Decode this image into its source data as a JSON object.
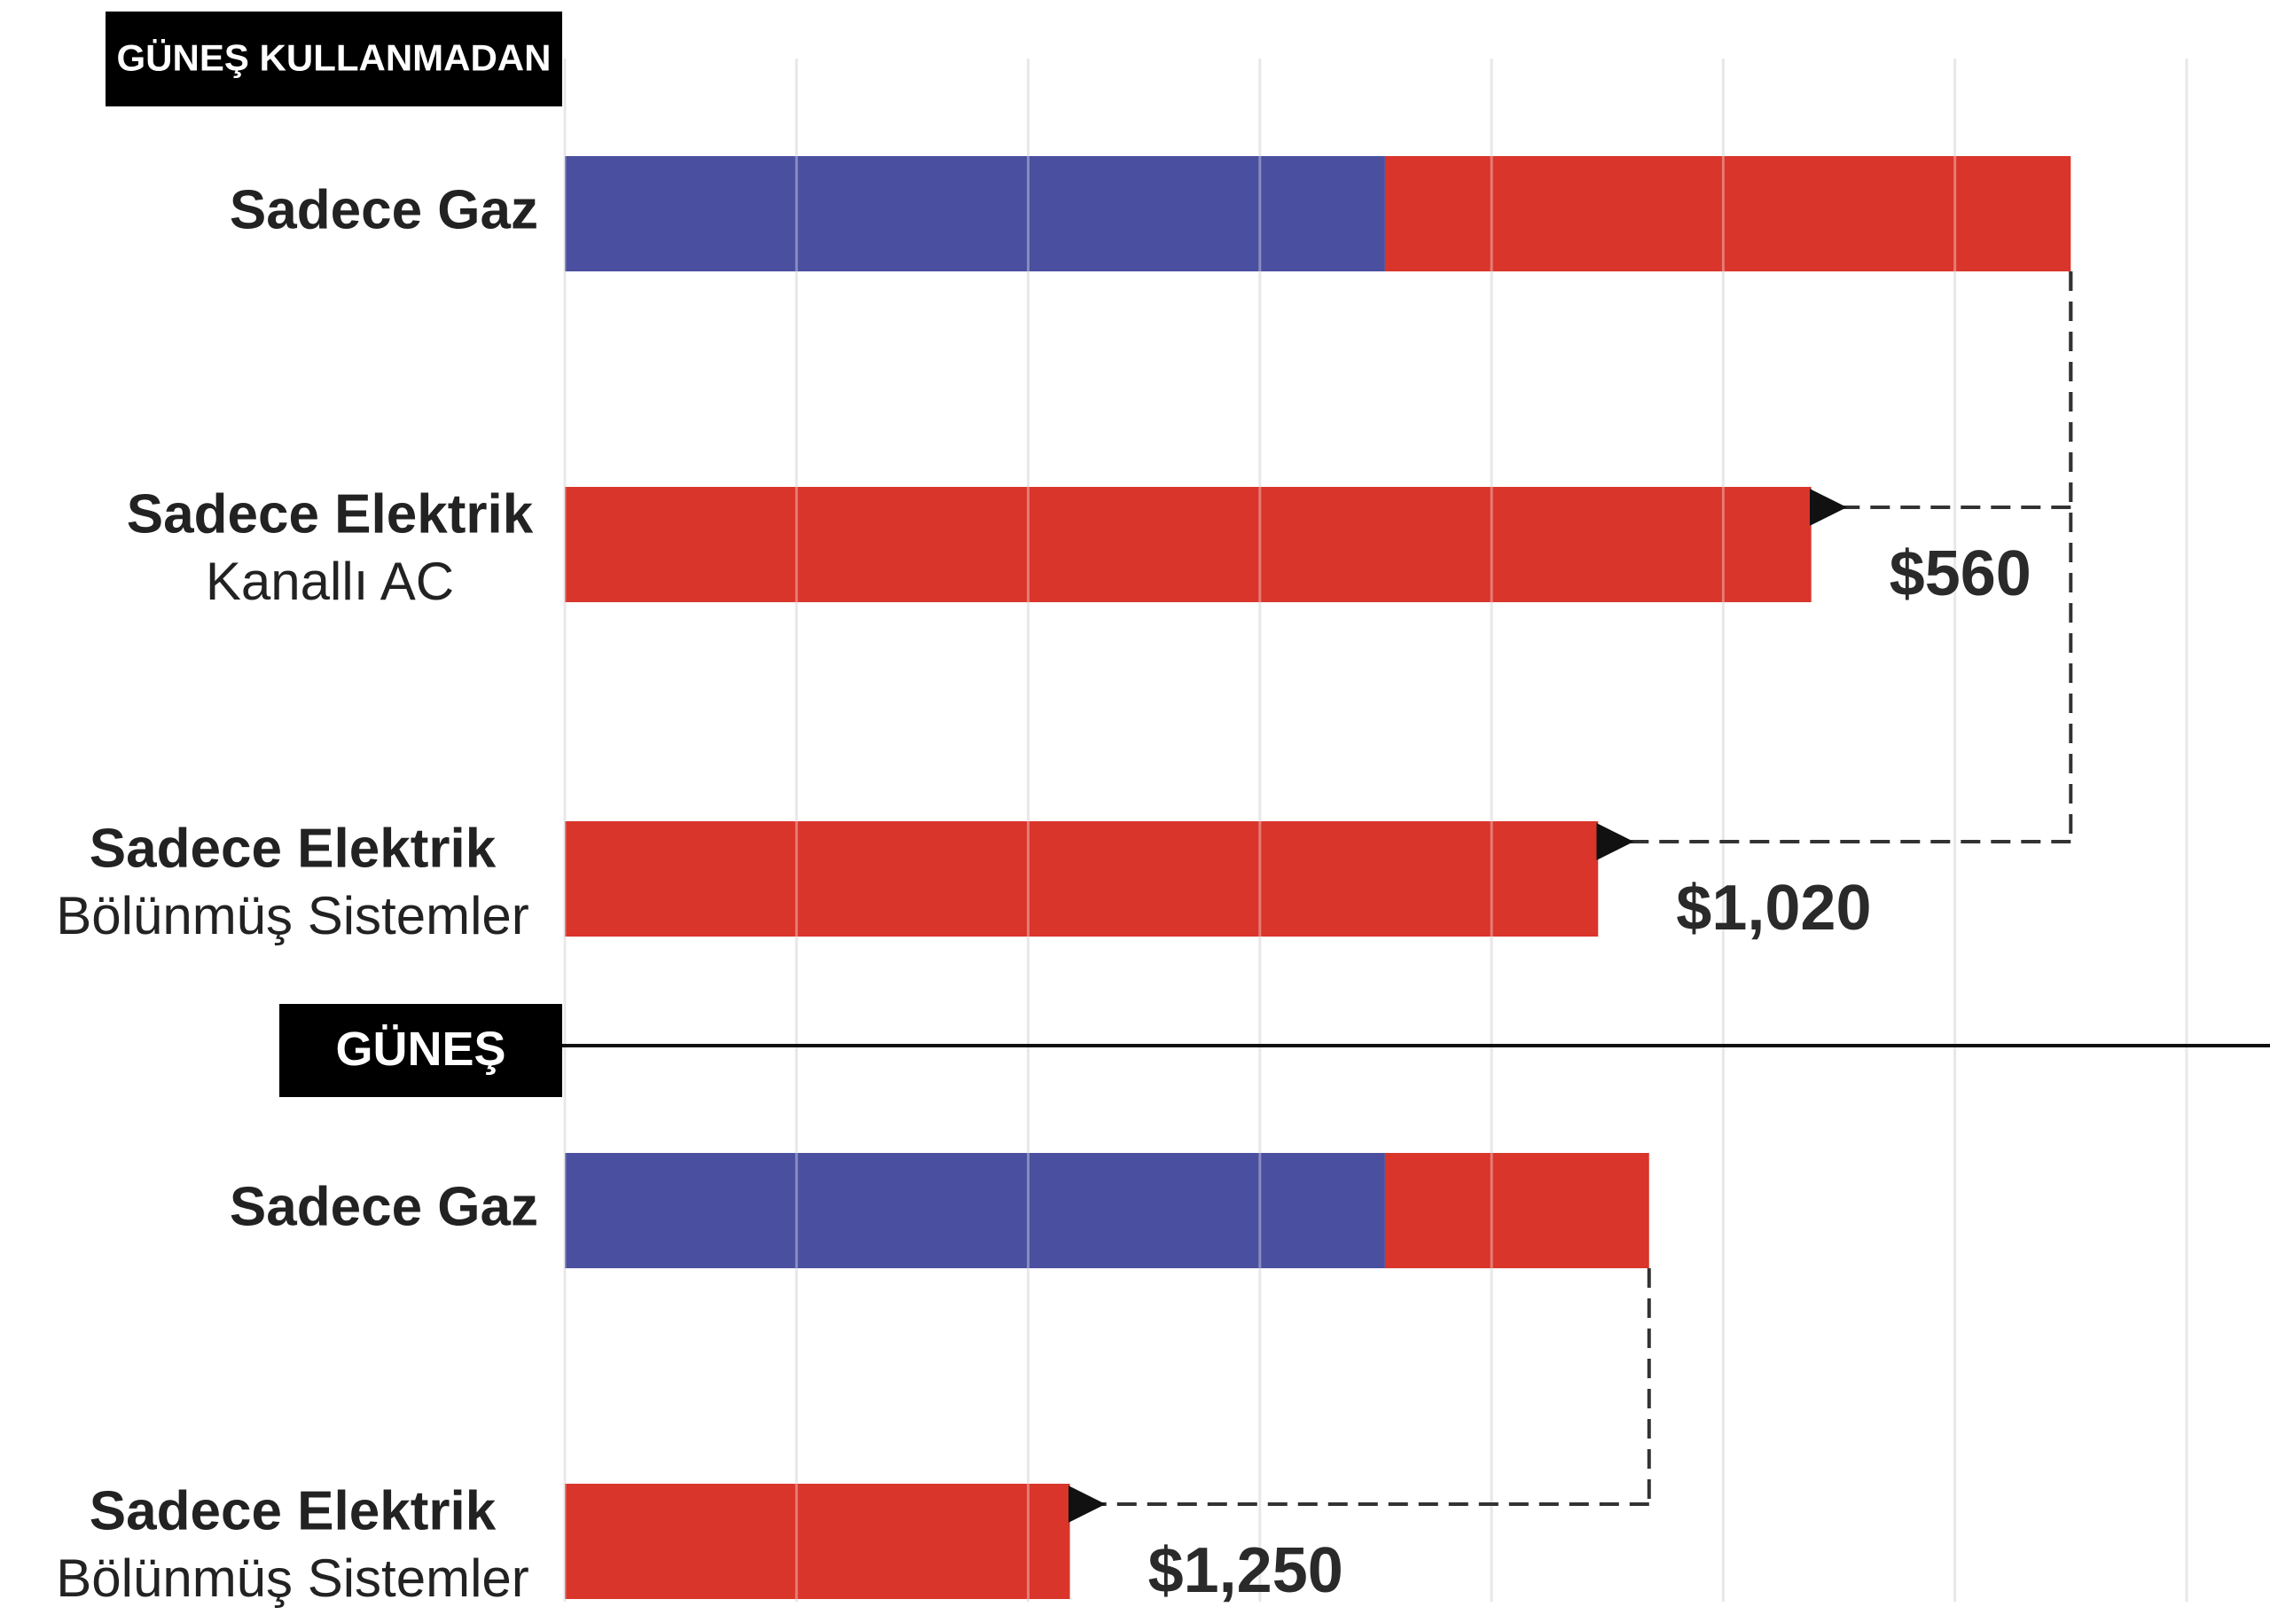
{
  "chart_data": {
    "type": "bar",
    "groups": [
      {
        "label": "GÜNEŞ KULLANMADAN",
        "start": 0
      },
      {
        "label": "GÜNEŞ",
        "start": 3
      }
    ],
    "categories": [
      "Sadece Gaz",
      "Sadece Elektrik",
      "Sadece Elektrik",
      "Sadece Gaz",
      "Sadece Elektrik"
    ],
    "category_notes": [
      null,
      "Kanallı AC",
      "Bölünmüş Sistemler",
      null,
      "Bölünmüş Sistemler"
    ],
    "series": [
      {
        "color": "#4a4f9f",
        "values": [
          1770,
          null,
          null,
          1770,
          null
        ]
      },
      {
        "color": "#d9352b",
        "values": [
          1480,
          2690,
          2230,
          570,
          1090
        ]
      }
    ],
    "annotations": [
      {
        "label": "$560",
        "value": 560,
        "from": 0,
        "to": 1
      },
      {
        "label": "$1,020",
        "value": 1020,
        "from": 0,
        "to": 2
      },
      {
        "label": "$1,250",
        "value": 1250,
        "from": 3,
        "to": 4
      }
    ],
    "xlim": [
      0,
      3680
    ],
    "xticks": [
      0,
      500,
      1000,
      1500,
      2000,
      2500,
      3000,
      3500
    ],
    "grid": true
  }
}
